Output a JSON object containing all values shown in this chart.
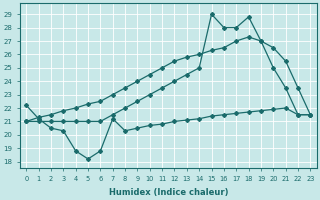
{
  "xlabel": "Humidex (Indice chaleur)",
  "bg_color": "#c8e8e8",
  "line_color": "#1a6b6b",
  "grid_color": "#ffffff",
  "xlim": [
    -0.5,
    23.5
  ],
  "ylim": [
    17.5,
    29.8
  ],
  "yticks": [
    18,
    19,
    20,
    21,
    22,
    23,
    24,
    25,
    26,
    27,
    28,
    29
  ],
  "xticks": [
    0,
    1,
    2,
    3,
    4,
    5,
    6,
    7,
    8,
    9,
    10,
    11,
    12,
    13,
    14,
    15,
    16,
    17,
    18,
    19,
    20,
    21,
    22,
    23
  ],
  "line1_x": [
    0,
    1,
    2,
    3,
    4,
    5,
    6,
    7,
    8,
    9,
    10,
    11,
    12,
    13,
    14,
    15,
    16,
    17,
    18,
    19,
    20,
    21,
    22,
    23
  ],
  "line1_y": [
    22.2,
    21.2,
    20.5,
    20.3,
    18.8,
    18.2,
    18.8,
    21.2,
    20.3,
    20.5,
    20.7,
    20.8,
    21.0,
    21.1,
    21.2,
    21.4,
    21.5,
    21.6,
    21.7,
    21.8,
    21.9,
    22.0,
    21.5,
    21.5
  ],
  "line2_x": [
    0,
    1,
    2,
    3,
    4,
    5,
    6,
    7,
    8,
    9,
    10,
    11,
    12,
    13,
    14,
    15,
    16,
    17,
    18,
    19,
    20,
    21,
    22,
    23
  ],
  "line2_y": [
    21.0,
    21.3,
    21.5,
    21.8,
    22.0,
    22.3,
    22.5,
    23.0,
    23.5,
    24.0,
    24.5,
    25.0,
    25.5,
    25.8,
    26.0,
    26.3,
    26.5,
    27.0,
    27.3,
    27.0,
    26.5,
    25.5,
    23.5,
    21.5
  ],
  "line3_x": [
    0,
    1,
    2,
    3,
    4,
    5,
    6,
    7,
    8,
    9,
    10,
    11,
    12,
    13,
    14,
    15,
    16,
    17,
    18,
    19,
    20,
    21,
    22,
    23
  ],
  "line3_y": [
    21.0,
    21.0,
    21.0,
    21.0,
    21.0,
    21.0,
    21.0,
    21.5,
    22.0,
    22.5,
    23.0,
    23.5,
    24.0,
    24.5,
    25.0,
    29.0,
    28.0,
    28.0,
    28.8,
    27.0,
    25.0,
    23.5,
    21.5,
    21.5
  ]
}
